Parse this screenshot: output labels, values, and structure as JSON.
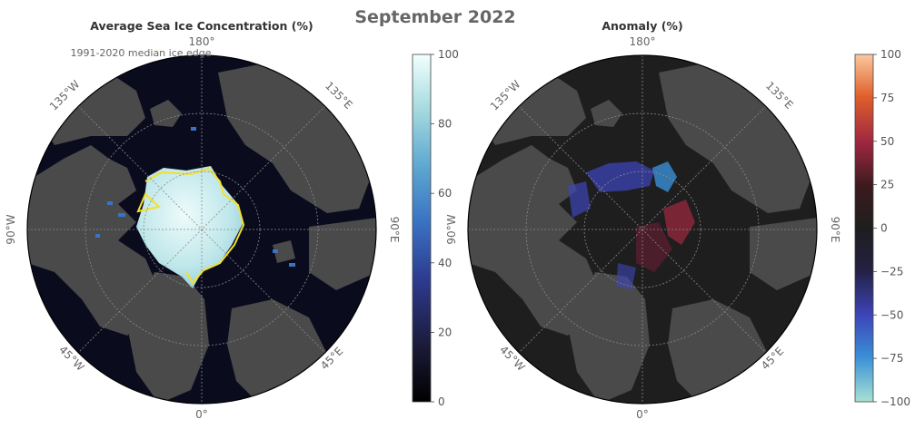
{
  "figure": {
    "title": "September 2022"
  },
  "panels": [
    {
      "title": "Average Sea Ice Concentration (%)",
      "annotation": "1991-2020 median ice edge",
      "lon_labels": [
        "180°",
        "135°E",
        "90°E",
        "45°E",
        "0°",
        "45°W",
        "90°W",
        "135°W"
      ],
      "colorbar": {
        "ticks": [
          "0",
          "20",
          "40",
          "60",
          "80",
          "100"
        ],
        "range": [
          0,
          100
        ],
        "colors": [
          "#000000",
          "#1c1c3c",
          "#2d3a8f",
          "#3a73c4",
          "#5fa8d0",
          "#a9dce0",
          "#f2ffff"
        ]
      },
      "colors": {
        "ocean": "#0a0c1e",
        "land": "#4a4a4a",
        "edge": "#f5e02a"
      }
    },
    {
      "title": "Anomaly (%)",
      "lon_labels": [
        "180°",
        "135°E",
        "90°E",
        "45°E",
        "0°",
        "45°W",
        "90°W",
        "135°W"
      ],
      "colorbar": {
        "ticks": [
          "100",
          "75",
          "50",
          "25",
          "0",
          "−25",
          "−50",
          "−75",
          "−100"
        ],
        "range": [
          -100,
          100
        ],
        "colors": [
          "#a8e1d4",
          "#3a8fd6",
          "#3d44b8",
          "#232042",
          "#1e1e1e",
          "#3b1a1e",
          "#a02840",
          "#e0602c",
          "#fbc9a0"
        ]
      },
      "colors": {
        "ocean": "#1e1e1e",
        "land": "#4a4a4a"
      }
    }
  ]
}
